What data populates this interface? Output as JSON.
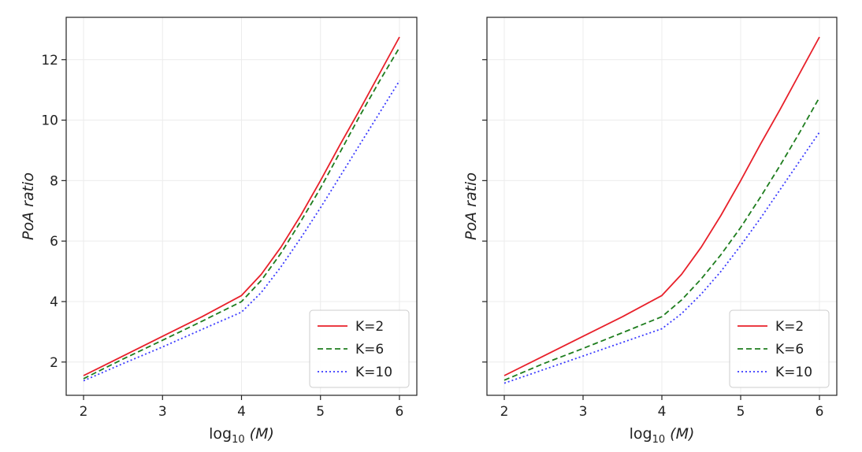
{
  "chart_data": [
    {
      "type": "line",
      "title": "",
      "xlabel": "log",
      "xlabel_sub": "10",
      "xlabel_arg": "(M)",
      "ylabel": "PoA ratio",
      "xlim": [
        1.78,
        6.22
      ],
      "ylim": [
        0.9,
        13.4
      ],
      "xticks": [
        "2",
        "3",
        "4",
        "5",
        "6"
      ],
      "yticks": [
        "2",
        "4",
        "6",
        "8",
        "10",
        "12"
      ],
      "grid": true,
      "legend": "lower-right",
      "series": [
        {
          "name": "K=2",
          "color": "#e8202a",
          "style": "solid",
          "x": [
            2,
            2.5,
            3,
            3.5,
            4,
            4.25,
            4.5,
            4.75,
            5,
            5.25,
            5.5,
            5.75,
            6
          ],
          "y": [
            1.55,
            2.2,
            2.85,
            3.5,
            4.2,
            4.9,
            5.8,
            6.85,
            8.0,
            9.2,
            10.35,
            11.55,
            12.75
          ]
        },
        {
          "name": "K=6",
          "color": "#1e7d1e",
          "style": "dashed",
          "x": [
            2,
            2.5,
            3,
            3.5,
            4,
            4.25,
            4.5,
            4.75,
            5,
            5.25,
            5.5,
            5.75,
            6
          ],
          "y": [
            1.45,
            2.1,
            2.72,
            3.35,
            4.0,
            4.7,
            5.6,
            6.65,
            7.75,
            8.95,
            10.15,
            11.3,
            12.4
          ]
        },
        {
          "name": "K=10",
          "color": "#3a3aff",
          "style": "dotted",
          "x": [
            2,
            2.5,
            3,
            3.5,
            4,
            4.25,
            4.5,
            4.75,
            5,
            5.25,
            5.5,
            5.75,
            6
          ],
          "y": [
            1.38,
            1.95,
            2.5,
            3.08,
            3.65,
            4.3,
            5.15,
            6.1,
            7.1,
            8.15,
            9.2,
            10.25,
            11.3
          ]
        }
      ]
    },
    {
      "type": "line",
      "title": "",
      "xlabel": "log",
      "xlabel_sub": "10",
      "xlabel_arg": "(M)",
      "ylabel": "PoA ratio",
      "xlim": [
        1.78,
        6.22
      ],
      "ylim": [
        0.9,
        13.4
      ],
      "xticks": [
        "2",
        "3",
        "4",
        "5",
        "6"
      ],
      "yticks": [
        "2",
        "4",
        "6",
        "8",
        "10",
        "12"
      ],
      "show_ytick_labels": false,
      "grid": true,
      "legend": "lower-right",
      "series": [
        {
          "name": "K=2",
          "color": "#e8202a",
          "style": "solid",
          "x": [
            2,
            2.5,
            3,
            3.5,
            4,
            4.25,
            4.5,
            4.75,
            5,
            5.25,
            5.5,
            5.75,
            6
          ],
          "y": [
            1.55,
            2.2,
            2.85,
            3.5,
            4.2,
            4.9,
            5.8,
            6.85,
            8.0,
            9.2,
            10.35,
            11.55,
            12.75
          ]
        },
        {
          "name": "K=6",
          "color": "#1e7d1e",
          "style": "dashed",
          "x": [
            2,
            2.5,
            3,
            3.5,
            4,
            4.25,
            4.5,
            4.75,
            5,
            5.25,
            5.5,
            5.75,
            6
          ],
          "y": [
            1.4,
            1.95,
            2.45,
            2.97,
            3.5,
            4.05,
            4.75,
            5.55,
            6.45,
            7.45,
            8.5,
            9.6,
            10.75
          ]
        },
        {
          "name": "K=10",
          "color": "#3a3aff",
          "style": "dotted",
          "x": [
            2,
            2.5,
            3,
            3.5,
            4,
            4.25,
            4.5,
            4.75,
            5,
            5.25,
            5.5,
            5.75,
            6
          ],
          "y": [
            1.3,
            1.75,
            2.2,
            2.65,
            3.1,
            3.6,
            4.25,
            5.0,
            5.85,
            6.75,
            7.7,
            8.65,
            9.6
          ]
        }
      ]
    }
  ]
}
